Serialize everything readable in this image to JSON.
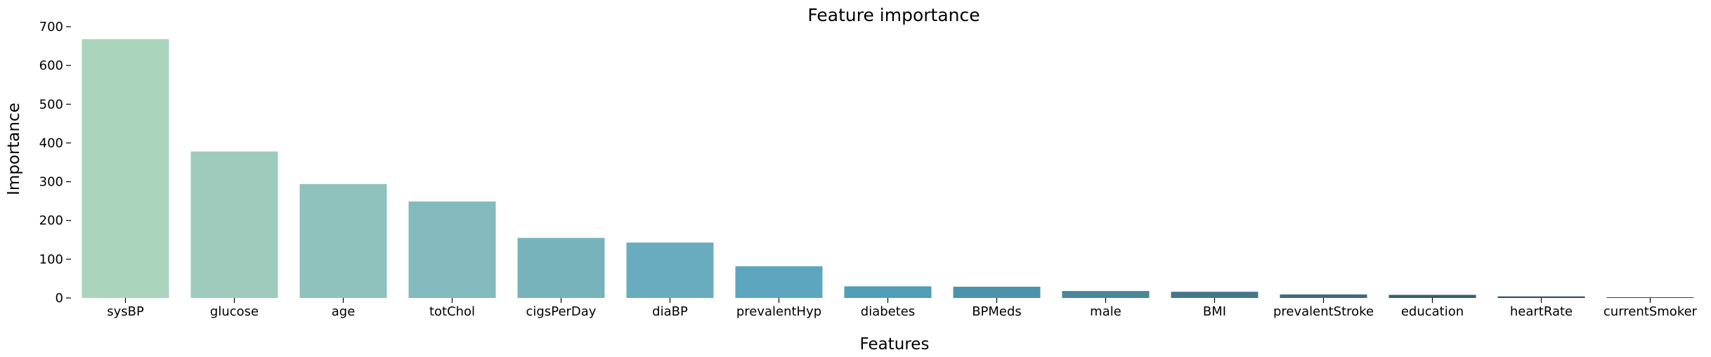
{
  "chart_data": {
    "type": "bar",
    "title": "Feature importance",
    "xlabel": "Features",
    "ylabel": "Importance",
    "ylim": [
      0,
      700
    ],
    "yticks": [
      0,
      100,
      200,
      300,
      400,
      500,
      600,
      700
    ],
    "grid": false,
    "categories": [
      "sysBP",
      "glucose",
      "age",
      "totChol",
      "cigsPerDay",
      "diaBP",
      "prevalentHyp",
      "diabetes",
      "BPMeds",
      "male",
      "BMI",
      "prevalentStroke",
      "education",
      "heartRate",
      "currentSmoker"
    ],
    "values": [
      668,
      378,
      294,
      249,
      155,
      143,
      82,
      30,
      29,
      18,
      16,
      9,
      8,
      4,
      1
    ],
    "colors": [
      "#aad5bc",
      "#9ecbbc",
      "#90c2bd",
      "#83babe",
      "#77b3bb",
      "#6aacbf",
      "#5ea6bf",
      "#529db8",
      "#4d92ac",
      "#4a869c",
      "#447789",
      "#3f6b7b",
      "#3a5f6d",
      "#34515d",
      "#2f4450"
    ]
  }
}
